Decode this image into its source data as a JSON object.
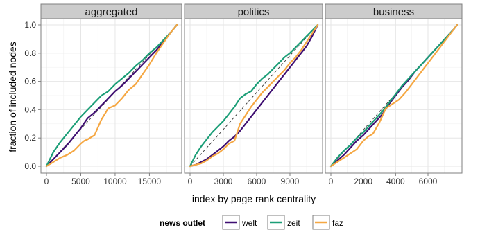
{
  "chart_data": {
    "type": "line",
    "xlabel": "index by page rank centrality",
    "ylabel": "fraction of included nodes",
    "legend": {
      "title": "news outlet",
      "placement": "bottom",
      "entries": [
        {
          "name": "welt",
          "color": "#3f0f72"
        },
        {
          "name": "zeit",
          "color": "#1b9e77"
        },
        {
          "name": "faz",
          "color": "#f5a742"
        }
      ]
    },
    "grid": true,
    "reference_line": "diagonal y = x / xmax (dashed)",
    "yticks": [
      "0.0",
      "0.2",
      "0.4",
      "0.6",
      "0.8",
      "1.0"
    ],
    "ylim": [
      0,
      1
    ],
    "facets": [
      {
        "title": "aggregated",
        "xlim": [
          0,
          19000
        ],
        "xmax": 19000,
        "xticks": [
          0,
          5000,
          10000,
          15000
        ],
        "xtick_labels": [
          "0",
          "5000",
          "10000",
          "15000"
        ],
        "series": [
          {
            "name": "welt",
            "x": [
              0,
              1000,
              2000,
              3000,
              4000,
              5000,
              6000,
              7000,
              8000,
              9000,
              10000,
              11000,
              12000,
              13000,
              14000,
              15000,
              16000,
              17000,
              18000,
              19000
            ],
            "y": [
              0,
              0.05,
              0.1,
              0.15,
              0.21,
              0.27,
              0.34,
              0.38,
              0.43,
              0.48,
              0.53,
              0.57,
              0.62,
              0.67,
              0.72,
              0.77,
              0.82,
              0.88,
              0.94,
              1.0
            ]
          },
          {
            "name": "zeit",
            "x": [
              0,
              1000,
              2000,
              3000,
              4000,
              5000,
              6000,
              7000,
              8000,
              9000,
              10000,
              11000,
              12000,
              13000,
              14000,
              15000,
              16000,
              17000,
              18000,
              19000
            ],
            "y": [
              0,
              0.1,
              0.17,
              0.23,
              0.29,
              0.35,
              0.4,
              0.45,
              0.5,
              0.53,
              0.58,
              0.62,
              0.66,
              0.71,
              0.75,
              0.8,
              0.84,
              0.89,
              0.94,
              1.0
            ]
          },
          {
            "name": "faz",
            "x": [
              0,
              1000,
              2000,
              3000,
              4000,
              5000,
              5500,
              6000,
              7000,
              8000,
              9000,
              10000,
              11000,
              12000,
              13000,
              14000,
              15000,
              16000,
              17000,
              18000,
              19000
            ],
            "y": [
              0,
              0.03,
              0.06,
              0.08,
              0.11,
              0.16,
              0.18,
              0.19,
              0.22,
              0.33,
              0.41,
              0.43,
              0.48,
              0.54,
              0.58,
              0.65,
              0.72,
              0.8,
              0.87,
              0.94,
              1.0
            ]
          }
        ]
      },
      {
        "title": "politics",
        "xlim": [
          0,
          11500
        ],
        "xmax": 11500,
        "xticks": [
          0,
          3000,
          6000,
          9000
        ],
        "xtick_labels": [
          "0",
          "3000",
          "6000",
          "9000"
        ],
        "series": [
          {
            "name": "welt",
            "x": [
              0,
              500,
              1000,
              1500,
              2000,
              2500,
              3000,
              3500,
              4000,
              4500,
              5000,
              5500,
              6000,
              6500,
              7000,
              7500,
              8000,
              8500,
              9000,
              9500,
              10000,
              10500,
              11000,
              11500
            ],
            "y": [
              0,
              0.01,
              0.03,
              0.05,
              0.08,
              0.11,
              0.14,
              0.18,
              0.21,
              0.25,
              0.3,
              0.35,
              0.4,
              0.45,
              0.5,
              0.55,
              0.6,
              0.65,
              0.7,
              0.75,
              0.8,
              0.85,
              0.92,
              1.0
            ]
          },
          {
            "name": "zeit",
            "x": [
              0,
              500,
              1000,
              1500,
              2000,
              2500,
              3000,
              3500,
              4000,
              4500,
              5000,
              5500,
              6000,
              6500,
              7000,
              7500,
              8000,
              8500,
              9000,
              9500,
              10000,
              10500,
              11000,
              11500
            ],
            "y": [
              0,
              0.08,
              0.14,
              0.19,
              0.24,
              0.28,
              0.32,
              0.37,
              0.42,
              0.48,
              0.51,
              0.53,
              0.58,
              0.62,
              0.65,
              0.69,
              0.73,
              0.77,
              0.8,
              0.84,
              0.88,
              0.92,
              0.96,
              1.0
            ]
          },
          {
            "name": "faz",
            "x": [
              0,
              500,
              1000,
              1500,
              2000,
              2500,
              3000,
              3500,
              4000,
              4500,
              5000,
              5500,
              6000,
              6500,
              7000,
              7500,
              8000,
              8500,
              9000,
              9500,
              10000,
              10500,
              11000,
              11500
            ],
            "y": [
              0,
              0.01,
              0.02,
              0.04,
              0.07,
              0.09,
              0.12,
              0.16,
              0.18,
              0.3,
              0.36,
              0.42,
              0.47,
              0.52,
              0.56,
              0.6,
              0.64,
              0.68,
              0.73,
              0.77,
              0.82,
              0.88,
              0.94,
              1.0
            ]
          }
        ]
      },
      {
        "title": "business",
        "xlim": [
          0,
          7800
        ],
        "xmax": 7800,
        "xticks": [
          0,
          2000,
          4000,
          6000
        ],
        "xtick_labels": [
          "0",
          "2000",
          "4000",
          "6000"
        ],
        "series": [
          {
            "name": "welt",
            "x": [
              0,
              400,
              800,
              1200,
              1600,
              2000,
              2400,
              2800,
              3200,
              3600,
              4000,
              4400,
              4800,
              5200,
              5600,
              6000,
              6400,
              6800,
              7200,
              7600,
              7800
            ],
            "y": [
              0,
              0.04,
              0.08,
              0.13,
              0.18,
              0.22,
              0.27,
              0.32,
              0.37,
              0.44,
              0.5,
              0.56,
              0.61,
              0.67,
              0.72,
              0.77,
              0.82,
              0.87,
              0.92,
              0.97,
              1.0
            ]
          },
          {
            "name": "zeit",
            "x": [
              0,
              400,
              800,
              1200,
              1600,
              2000,
              2400,
              2800,
              3200,
              3600,
              4000,
              4400,
              4800,
              5200,
              5600,
              6000,
              6400,
              6800,
              7200,
              7600,
              7800
            ],
            "y": [
              0,
              0.06,
              0.11,
              0.15,
              0.2,
              0.24,
              0.29,
              0.34,
              0.39,
              0.45,
              0.51,
              0.57,
              0.62,
              0.67,
              0.72,
              0.77,
              0.82,
              0.87,
              0.92,
              0.97,
              1.0
            ]
          },
          {
            "name": "faz",
            "x": [
              0,
              400,
              800,
              1200,
              1600,
              2000,
              2300,
              2600,
              3000,
              3400,
              3800,
              4200,
              4600,
              5000,
              5400,
              5800,
              6200,
              6600,
              7000,
              7400,
              7800
            ],
            "y": [
              0,
              0.03,
              0.06,
              0.09,
              0.12,
              0.18,
              0.21,
              0.23,
              0.31,
              0.41,
              0.44,
              0.47,
              0.52,
              0.58,
              0.64,
              0.7,
              0.76,
              0.82,
              0.88,
              0.94,
              1.0
            ]
          }
        ]
      }
    ]
  }
}
